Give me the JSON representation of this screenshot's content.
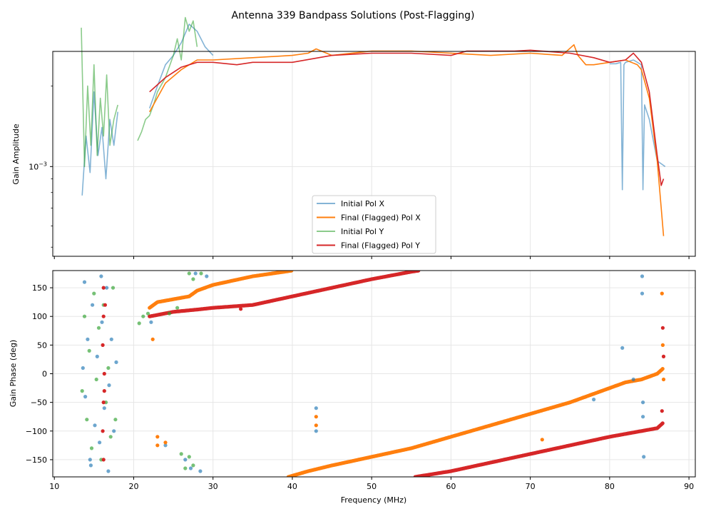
{
  "chart_data": {
    "type": "line",
    "title": "Antenna 339 Bandpass Solutions (Post-Flagging)",
    "colors": {
      "initial_x": "#1f77b4",
      "final_x": "#ff7f0e",
      "initial_y": "#2ca02c",
      "final_y": "#d62728",
      "grid": "#e6e6e6"
    },
    "panels": [
      {
        "id": "amplitude",
        "type": "line",
        "ylabel": "Gain Amplitude",
        "yscale": "log",
        "ylim_exponent": [
          -3.335,
          -2.57
        ],
        "y_tick_label": {
          "base": "10",
          "exponent": "−3"
        },
        "legend_location": "lower-center",
        "legend": [
          "Initial Pol X",
          "Final (Flagged) Pol X",
          "Initial Pol Y",
          "Final (Flagged) Pol Y"
        ]
      },
      {
        "id": "phase",
        "type": "scatter",
        "ylabel": "Gain Phase (deg)",
        "ylim": [
          -180,
          180
        ],
        "y_ticks": [
          -150,
          -100,
          -50,
          0,
          50,
          100,
          150
        ],
        "y_tick_labels": [
          "−150",
          "−100",
          "−50",
          "0",
          "50",
          "100",
          "150"
        ]
      }
    ],
    "x": {
      "label": "Frequency (MHz)",
      "range": [
        9.8,
        90.8
      ],
      "ticks": [
        10,
        20,
        30,
        40,
        50,
        60,
        70,
        80,
        90
      ],
      "tick_labels": [
        "10",
        "20",
        "30",
        "40",
        "50",
        "60",
        "70",
        "80",
        "90"
      ]
    },
    "amplitude_series": [
      {
        "name": "Initial Pol X",
        "key": "initial_x",
        "freq": [
          13.5,
          14,
          14.5,
          15,
          15.5,
          16,
          16.5,
          17,
          17.5,
          18
        ],
        "amp_e3": [
          0.78,
          1.3,
          0.95,
          1.9,
          1.1,
          1.4,
          0.9,
          1.5,
          1.2,
          1.6
        ]
      },
      {
        "name": "Initial Pol X",
        "key": "initial_x",
        "freq": [
          22,
          23,
          24,
          25,
          26,
          27,
          28,
          29,
          30
        ],
        "amp_e3": [
          1.65,
          2.0,
          2.4,
          2.6,
          2.9,
          3.4,
          3.2,
          2.8,
          2.6
        ]
      },
      {
        "name": "Initial Pol X",
        "key": "initial_x",
        "freq": [
          80,
          80.8,
          81.4,
          81.6,
          81.8,
          82,
          83,
          84,
          84.2,
          84.4,
          85,
          86,
          87
        ],
        "amp_e3": [
          2.42,
          2.42,
          2.45,
          0.82,
          2.4,
          2.45,
          2.5,
          2.4,
          0.82,
          1.7,
          1.5,
          1.05,
          1.0
        ]
      },
      {
        "name": "Initial Pol Y",
        "key": "initial_y",
        "freq": [
          13.4,
          13.8,
          14.2,
          14.6,
          15,
          15.4,
          15.8,
          16.2,
          16.6,
          17,
          17.5,
          18
        ],
        "amp_e3": [
          3.3,
          1.0,
          2.0,
          1.2,
          2.4,
          1.1,
          1.8,
          1.3,
          2.2,
          1.2,
          1.5,
          1.7
        ]
      },
      {
        "name": "Initial Pol Y",
        "key": "initial_y",
        "freq": [
          20.5,
          21,
          21.5,
          22,
          22.5,
          23,
          24,
          25,
          25.5,
          26,
          26.5,
          27,
          27.5,
          28
        ],
        "amp_e3": [
          1.25,
          1.35,
          1.5,
          1.55,
          1.7,
          1.9,
          2.15,
          2.6,
          3.0,
          2.5,
          3.6,
          3.2,
          3.5,
          2.8
        ]
      },
      {
        "name": "Final (Flagged) Pol X",
        "key": "final_x",
        "freq": [
          22,
          24,
          26,
          28,
          30,
          35,
          40,
          42,
          43,
          45,
          50,
          55,
          60,
          65,
          70,
          74,
          75.5,
          76,
          77,
          78,
          80,
          82,
          83.5,
          84,
          85,
          86,
          86.5,
          86.8
        ],
        "amp_e3": [
          1.6,
          2.05,
          2.3,
          2.5,
          2.5,
          2.55,
          2.6,
          2.65,
          2.75,
          2.6,
          2.7,
          2.7,
          2.65,
          2.6,
          2.65,
          2.6,
          2.85,
          2.6,
          2.4,
          2.4,
          2.45,
          2.5,
          2.4,
          2.3,
          1.8,
          1.05,
          0.7,
          0.55
        ]
      },
      {
        "name": "Final (Flagged) Pol Y",
        "key": "final_y",
        "freq": [
          22,
          24,
          26,
          28,
          30,
          33,
          35,
          40,
          45,
          50,
          55,
          60,
          62,
          65,
          68,
          70,
          75,
          78,
          80,
          82,
          83,
          84,
          85,
          86,
          86.5,
          86.8
        ],
        "amp_e3": [
          1.9,
          2.15,
          2.35,
          2.45,
          2.45,
          2.4,
          2.45,
          2.45,
          2.6,
          2.65,
          2.65,
          2.6,
          2.7,
          2.7,
          2.7,
          2.72,
          2.65,
          2.55,
          2.45,
          2.5,
          2.65,
          2.45,
          1.9,
          1.1,
          0.85,
          0.9
        ]
      }
    ],
    "phase_traces": [
      {
        "name": "Final (Flagged) Pol X",
        "key": "final_x",
        "freq": [
          22,
          23,
          25,
          27,
          28,
          29,
          30,
          35,
          40
        ],
        "phase": [
          115,
          125,
          130,
          135,
          145,
          150,
          155,
          170,
          180
        ]
      },
      {
        "name": "Final (Flagged) Pol X",
        "key": "final_x",
        "freq": [
          39.5,
          42,
          45,
          50,
          55,
          60,
          65,
          70,
          75,
          80,
          82,
          84,
          85,
          86,
          86.8
        ],
        "phase": [
          -180,
          -170,
          -160,
          -145,
          -130,
          -110,
          -90,
          -70,
          -50,
          -25,
          -15,
          -10,
          -5,
          0,
          10
        ]
      },
      {
        "name": "Final (Flagged) Pol Y",
        "key": "final_y",
        "freq": [
          22,
          25,
          28,
          30,
          35,
          40,
          45,
          50,
          55,
          56
        ],
        "phase": [
          100,
          108,
          112,
          115,
          120,
          135,
          150,
          165,
          178,
          180
        ]
      },
      {
        "name": "Final (Flagged) Pol Y",
        "key": "final_y",
        "freq": [
          55.5,
          60,
          65,
          70,
          75,
          80,
          82,
          84,
          86,
          86.8
        ],
        "phase": [
          -180,
          -170,
          -155,
          -140,
          -125,
          -110,
          -105,
          -100,
          -95,
          -85
        ]
      }
    ],
    "phase_points": [
      {
        "name": "Initial Pol X",
        "key": "initial_x",
        "points": [
          [
            13.6,
            10
          ],
          [
            13.9,
            -40
          ],
          [
            14.2,
            60
          ],
          [
            14.5,
            -150
          ],
          [
            14.8,
            120
          ],
          [
            15.1,
            -90
          ],
          [
            15.4,
            30
          ],
          [
            15.7,
            -120
          ],
          [
            16,
            90
          ],
          [
            16.3,
            -60
          ],
          [
            16.6,
            150
          ],
          [
            16.9,
            -20
          ],
          [
            17.2,
            60
          ],
          [
            17.5,
            -100
          ],
          [
            17.8,
            20
          ],
          [
            13.8,
            160
          ],
          [
            14.6,
            -160
          ],
          [
            15.9,
            170
          ],
          [
            16.8,
            -170
          ],
          [
            22.2,
            90
          ],
          [
            24,
            -125
          ],
          [
            26.5,
            -150
          ],
          [
            27.2,
            -165
          ],
          [
            27.8,
            175
          ],
          [
            28.4,
            -170
          ],
          [
            29.2,
            170
          ],
          [
            43,
            -60
          ],
          [
            43,
            -100
          ],
          [
            78,
            -45
          ],
          [
            81.6,
            45
          ],
          [
            83,
            -10
          ],
          [
            84.1,
            170
          ],
          [
            84.1,
            140
          ],
          [
            84.3,
            -145
          ],
          [
            84.2,
            -75
          ],
          [
            84.2,
            -50
          ]
        ]
      },
      {
        "name": "Initial Pol Y",
        "key": "initial_y",
        "points": [
          [
            13.5,
            -30
          ],
          [
            13.8,
            100
          ],
          [
            14.1,
            -80
          ],
          [
            14.4,
            40
          ],
          [
            14.7,
            -130
          ],
          [
            15,
            140
          ],
          [
            15.3,
            -10
          ],
          [
            15.6,
            80
          ],
          [
            15.9,
            -150
          ],
          [
            16.2,
            120
          ],
          [
            16.5,
            -50
          ],
          [
            16.8,
            10
          ],
          [
            17.1,
            -110
          ],
          [
            17.4,
            150
          ],
          [
            17.7,
            -80
          ],
          [
            20.7,
            88
          ],
          [
            21.2,
            100
          ],
          [
            21.8,
            105
          ],
          [
            26,
            -140
          ],
          [
            26.5,
            -165
          ],
          [
            27,
            -145
          ],
          [
            27.5,
            -160
          ],
          [
            27,
            175
          ],
          [
            27.5,
            165
          ],
          [
            28.5,
            175
          ],
          [
            24.5,
            105
          ],
          [
            25.5,
            115
          ]
        ]
      },
      {
        "name": "Final (Flagged) Pol X",
        "key": "final_x",
        "points": [
          [
            22.4,
            60
          ],
          [
            23,
            -110
          ],
          [
            23,
            -125
          ],
          [
            24,
            -120
          ],
          [
            43,
            -75
          ],
          [
            43,
            -90
          ],
          [
            71.5,
            -115
          ],
          [
            86.6,
            140
          ],
          [
            86.7,
            50
          ],
          [
            86.8,
            -10
          ]
        ]
      },
      {
        "name": "Final (Flagged) Pol Y",
        "key": "final_y",
        "points": [
          [
            16.2,
            150
          ],
          [
            16.2,
            100
          ],
          [
            16.1,
            50
          ],
          [
            16.3,
            0
          ],
          [
            16.2,
            -50
          ],
          [
            16.1,
            -100
          ],
          [
            16.2,
            -150
          ],
          [
            16.4,
            120
          ],
          [
            16.3,
            -30
          ],
          [
            33.5,
            113
          ],
          [
            86.6,
            -65
          ],
          [
            86.8,
            30
          ],
          [
            86.7,
            80
          ]
        ]
      }
    ]
  }
}
